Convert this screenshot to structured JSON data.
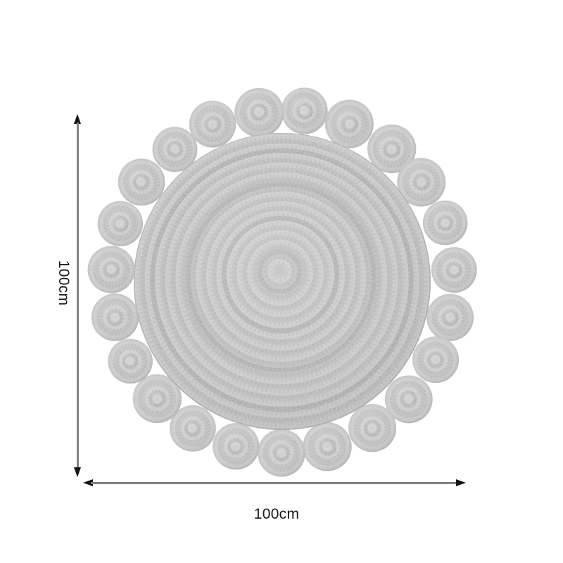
{
  "diagram": {
    "title": "rug-dimension-diagram",
    "dimensions": {
      "height_label": "100cm",
      "width_label": "100cm"
    }
  },
  "colors": {
    "background": "#ffffff",
    "dimension_line": "#828282",
    "arrowhead": "#141414",
    "label_text": "#1b1b1b",
    "rug_base": "#c7c7c7",
    "rug_ring_light": "#d1d1d1",
    "rug_ring_mid": "#bebebe",
    "rug_ring_dark": "#aeaeae",
    "rug_stitch": "#8f8f8f"
  }
}
